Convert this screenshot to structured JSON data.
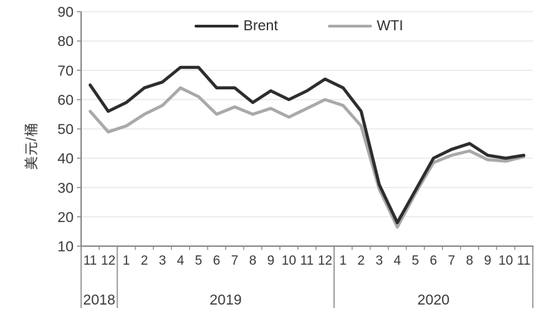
{
  "chart_data": {
    "type": "line",
    "title": "",
    "xlabel": "",
    "ylabel": "美元/桶",
    "ylim": [
      10,
      90
    ],
    "y_ticks": [
      10,
      20,
      30,
      40,
      50,
      60,
      70,
      80,
      90
    ],
    "grid": "horizontal",
    "legend_position": "top-center",
    "x_months": [
      "11",
      "12",
      "1",
      "2",
      "3",
      "4",
      "5",
      "6",
      "7",
      "8",
      "9",
      "10",
      "11",
      "12",
      "1",
      "2",
      "3",
      "4",
      "5",
      "6",
      "7",
      "8",
      "9",
      "10",
      "11"
    ],
    "year_groups": [
      {
        "label": "2018",
        "count": 2
      },
      {
        "label": "2019",
        "count": 12
      },
      {
        "label": "2020",
        "count": 11
      }
    ],
    "series": [
      {
        "name": "Brent",
        "color": "#2d2d2d",
        "values": [
          65,
          56,
          59,
          64,
          66,
          71,
          71,
          64,
          64,
          59,
          63,
          60,
          63,
          67,
          64,
          56,
          31,
          18,
          29,
          40,
          43,
          45,
          41,
          40,
          41
        ]
      },
      {
        "name": "WTI",
        "color": "#a9a9a9",
        "values": [
          56,
          49,
          51,
          55,
          58,
          64,
          61,
          55,
          57.5,
          55,
          57,
          54,
          57,
          60,
          58,
          51,
          29.5,
          16.5,
          28,
          38.5,
          41,
          42.5,
          39.5,
          39,
          40.5
        ]
      }
    ]
  },
  "colors": {
    "background": "#ffffff",
    "grid": "#e4e4e4",
    "axis": "#8a8a8a",
    "tick_text": "#3a3a3a",
    "year_text": "#3a3a3a"
  }
}
